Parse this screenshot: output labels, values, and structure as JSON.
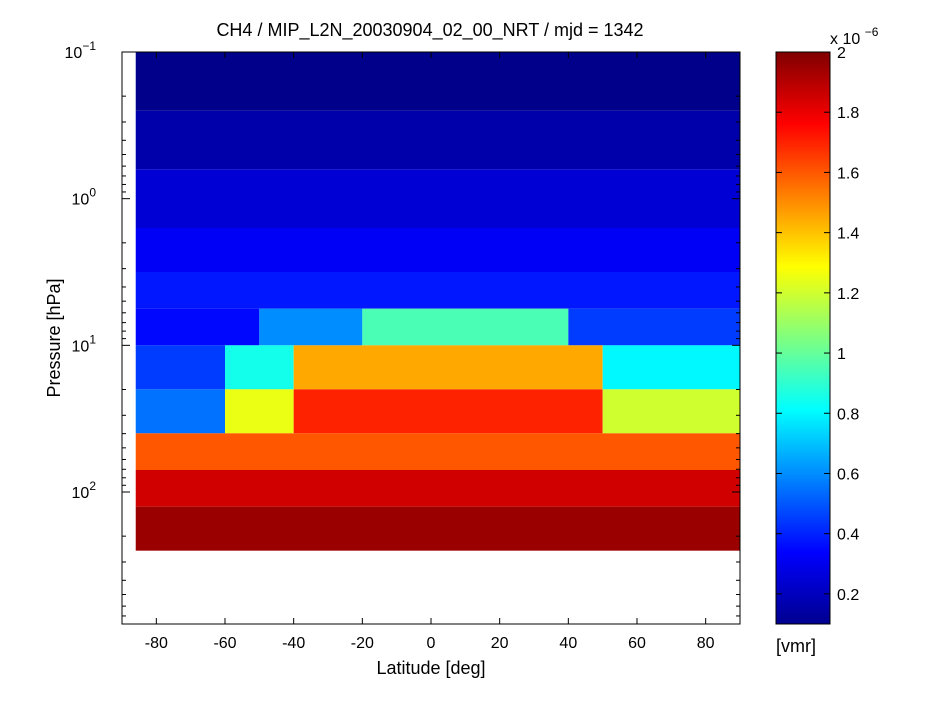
{
  "chart_data": {
    "type": "heatmap",
    "title": "CH4 / MIP_L2N_20030904_02_00_NRT / mjd = 1342",
    "xlabel": "Latitude [deg]",
    "ylabel": "Pressure [hPa]",
    "xlim": [
      -90,
      90
    ],
    "ylim_log10": [
      -1,
      2.9
    ],
    "y_scale": "log",
    "y_reversed": true,
    "x_ticks": [
      -80,
      -60,
      -40,
      -20,
      0,
      20,
      40,
      60,
      80
    ],
    "x_tick_labels": [
      "-80",
      "-60",
      "-40",
      "-20",
      "0",
      "20",
      "40",
      "60",
      "80"
    ],
    "y_ticks_exp": [
      -1,
      0,
      1,
      2
    ],
    "y_tick_base": "10",
    "y_tick_exponents": [
      "−1",
      "0",
      "1",
      "2"
    ],
    "colorbar": {
      "min": 0.1,
      "max": 2.0,
      "ticks": [
        0.2,
        0.4,
        0.6,
        0.8,
        1.0,
        1.2,
        1.4,
        1.6,
        1.8,
        2.0
      ],
      "tick_labels": [
        "0.2",
        "0.4",
        "0.6",
        "0.8",
        "1",
        "1.2",
        "1.4",
        "1.6",
        "1.8",
        "2"
      ],
      "scale_prefix": "x 10",
      "scale_exponent": "−6",
      "unit_label": "[vmr]",
      "colormap": "jet"
    },
    "grid": false,
    "cells": [
      {
        "lat_from": -86,
        "lat_to": 90,
        "p_exp_from": -1.0,
        "p_exp_to": -0.6,
        "v": 0.12
      },
      {
        "lat_from": -86,
        "lat_to": 90,
        "p_exp_from": -0.6,
        "p_exp_to": -0.2,
        "v": 0.18
      },
      {
        "lat_from": -86,
        "lat_to": 90,
        "p_exp_from": -0.2,
        "p_exp_to": 0.2,
        "v": 0.26
      },
      {
        "lat_from": -86,
        "lat_to": 90,
        "p_exp_from": 0.2,
        "p_exp_to": 0.5,
        "v": 0.32
      },
      {
        "lat_from": -86,
        "lat_to": 90,
        "p_exp_from": 0.5,
        "p_exp_to": 0.75,
        "v": 0.38
      },
      {
        "lat_from": -86,
        "lat_to": -50,
        "p_exp_from": 0.75,
        "p_exp_to": 1.0,
        "v": 0.35
      },
      {
        "lat_from": -50,
        "lat_to": -20,
        "p_exp_from": 0.75,
        "p_exp_to": 1.0,
        "v": 0.6
      },
      {
        "lat_from": -20,
        "lat_to": 40,
        "p_exp_from": 0.75,
        "p_exp_to": 1.0,
        "v": 0.95
      },
      {
        "lat_from": 40,
        "lat_to": 90,
        "p_exp_from": 0.75,
        "p_exp_to": 1.0,
        "v": 0.45
      },
      {
        "lat_from": -86,
        "lat_to": -60,
        "p_exp_from": 1.0,
        "p_exp_to": 1.3,
        "v": 0.45
      },
      {
        "lat_from": -60,
        "lat_to": -40,
        "p_exp_from": 1.0,
        "p_exp_to": 1.3,
        "v": 0.85
      },
      {
        "lat_from": -40,
        "lat_to": 50,
        "p_exp_from": 1.0,
        "p_exp_to": 1.3,
        "v": 1.45
      },
      {
        "lat_from": 50,
        "lat_to": 90,
        "p_exp_from": 1.0,
        "p_exp_to": 1.3,
        "v": 0.8
      },
      {
        "lat_from": -86,
        "lat_to": -60,
        "p_exp_from": 1.3,
        "p_exp_to": 1.6,
        "v": 0.55
      },
      {
        "lat_from": -60,
        "lat_to": -40,
        "p_exp_from": 1.3,
        "p_exp_to": 1.6,
        "v": 1.25
      },
      {
        "lat_from": -40,
        "lat_to": 50,
        "p_exp_from": 1.3,
        "p_exp_to": 1.6,
        "v": 1.7
      },
      {
        "lat_from": 50,
        "lat_to": 90,
        "p_exp_from": 1.3,
        "p_exp_to": 1.6,
        "v": 1.2
      },
      {
        "lat_from": -86,
        "lat_to": 90,
        "p_exp_from": 1.6,
        "p_exp_to": 1.85,
        "v": 1.6
      },
      {
        "lat_from": -86,
        "lat_to": 90,
        "p_exp_from": 1.85,
        "p_exp_to": 2.1,
        "v": 1.85
      },
      {
        "lat_from": -86,
        "lat_to": 90,
        "p_exp_from": 2.1,
        "p_exp_to": 2.4,
        "v": 1.95
      }
    ]
  }
}
